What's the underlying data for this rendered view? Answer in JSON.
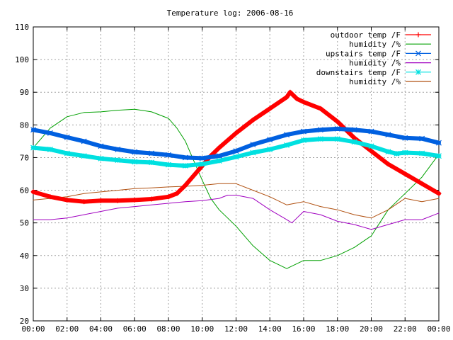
{
  "chart_data": {
    "type": "line",
    "title": "Temperature log: 2006-08-16",
    "xlabel": "",
    "ylabel": "",
    "ylim": [
      20,
      110
    ],
    "xlim": [
      0,
      24
    ],
    "grid": true,
    "legend_position": "top-right",
    "x_ticks": [
      "00:00",
      "02:00",
      "04:00",
      "06:00",
      "08:00",
      "10:00",
      "12:00",
      "14:00",
      "16:00",
      "18:00",
      "20:00",
      "22:00",
      "00:00"
    ],
    "y_ticks": [
      "20",
      "30",
      "40",
      "50",
      "60",
      "70",
      "80",
      "90",
      "100",
      "110"
    ],
    "series": [
      {
        "name": "outdoor temp /F",
        "color": "#ff0000",
        "marker": "plus",
        "x": [
          0,
          1,
          2,
          3,
          4,
          5,
          6,
          7,
          8,
          8.5,
          9,
          9.5,
          10,
          10.5,
          11,
          12,
          13,
          14,
          15,
          15.2,
          15.6,
          16,
          17,
          18,
          19,
          20,
          21,
          22,
          23,
          24
        ],
        "y": [
          59.5,
          58,
          57,
          56.5,
          56.8,
          56.8,
          57,
          57.3,
          58,
          59,
          61.5,
          64.5,
          67.5,
          70.5,
          73,
          77.5,
          81.5,
          85,
          88.5,
          90,
          88,
          87,
          85,
          81,
          76,
          72,
          68,
          65,
          62,
          59
        ]
      },
      {
        "name": "humidity /%",
        "color": "#00a000",
        "marker": "none",
        "x": [
          0,
          0.5,
          1,
          2,
          3,
          4,
          5,
          6,
          7,
          8,
          8.5,
          9,
          9.5,
          10,
          10.5,
          11,
          12,
          13,
          14,
          15,
          16,
          17,
          18,
          19,
          20,
          20.5,
          21,
          22,
          23,
          24
        ],
        "y": [
          73,
          76,
          79,
          82.5,
          83.8,
          84,
          84.5,
          84.8,
          84,
          82,
          79,
          75,
          69,
          63,
          57.5,
          54,
          49,
          43,
          38.5,
          36,
          38.5,
          38.5,
          40,
          42.5,
          46,
          50,
          54,
          59,
          64,
          71
        ]
      },
      {
        "name": "upstairs temp /F",
        "color": "#0060e0",
        "marker": "cross",
        "x": [
          0,
          1,
          2,
          3,
          4,
          5,
          6,
          7,
          8,
          9,
          10,
          11,
          12,
          13,
          14,
          15,
          16,
          17,
          18,
          19,
          20,
          21,
          22,
          23,
          24
        ],
        "y": [
          78.5,
          77.5,
          76.2,
          75,
          73.5,
          72.5,
          71.7,
          71.3,
          70.8,
          70,
          69.8,
          70.5,
          72,
          74,
          75.5,
          77,
          78,
          78.5,
          78.8,
          78.5,
          78,
          77,
          76,
          75.8,
          74.5
        ]
      },
      {
        "name": "humidity /%",
        "color": "#a000c0",
        "marker": "none",
        "x": [
          0,
          1,
          2,
          3,
          4,
          5,
          6,
          7,
          8,
          9,
          10,
          11,
          11.5,
          12,
          13,
          14,
          15,
          15.3,
          16,
          17,
          18,
          19,
          20,
          21,
          22,
          23,
          24
        ],
        "y": [
          51,
          51,
          51.5,
          52.5,
          53.5,
          54.5,
          55,
          55.5,
          56,
          56.5,
          56.8,
          57.5,
          58.5,
          58.5,
          57.5,
          54,
          51,
          50,
          53.5,
          52.5,
          50.5,
          49.5,
          48,
          49.5,
          51,
          51,
          53
        ]
      },
      {
        "name": "downstairs temp /F",
        "color": "#00e0e0",
        "marker": "star",
        "x": [
          0,
          1,
          2,
          3,
          4,
          5,
          6,
          7,
          8,
          9,
          10,
          11,
          12,
          13,
          14,
          15,
          16,
          17,
          18,
          19,
          20,
          21,
          21.5,
          22,
          23,
          24
        ],
        "y": [
          73,
          72.5,
          71.3,
          70.5,
          69.7,
          69.2,
          68.7,
          68.5,
          67.8,
          67.5,
          68,
          69,
          70.2,
          71.5,
          72.5,
          73.8,
          75.3,
          75.7,
          75.7,
          74.8,
          73.5,
          71.8,
          71.2,
          71.5,
          71.3,
          70.5
        ]
      },
      {
        "name": "humidity /%",
        "color": "#b05010",
        "marker": "none",
        "x": [
          0,
          1,
          2,
          3,
          4,
          5,
          6,
          7,
          8,
          9,
          10,
          11,
          12,
          13,
          14,
          15,
          16,
          17,
          18,
          19,
          20,
          21,
          22,
          23,
          24
        ],
        "y": [
          57,
          57.5,
          58,
          59,
          59.5,
          60,
          60.5,
          60.7,
          61,
          61.2,
          61.5,
          62,
          62,
          60,
          58,
          55.5,
          56.5,
          55,
          54,
          52.5,
          51.5,
          54,
          57.5,
          56.5,
          57.5
        ]
      }
    ]
  }
}
